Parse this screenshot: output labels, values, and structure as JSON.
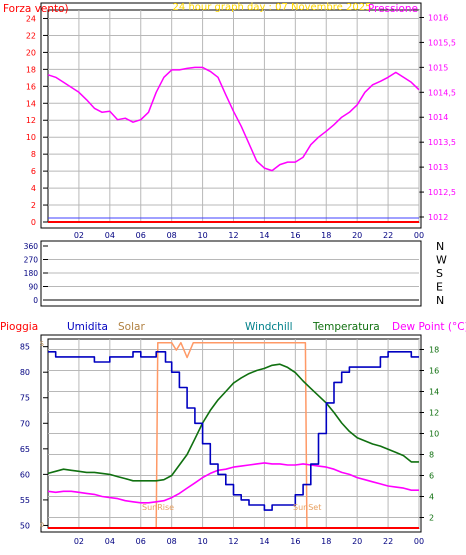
{
  "header_top": {
    "left_label": "Forza vento)",
    "title": "24 hour graph day : 07 Novembre 2025",
    "right_label": "Pressione"
  },
  "header_bottom": {
    "labels": [
      "Pioggia",
      "Umidita",
      "Solar",
      "Windchill",
      "Temperatura",
      "Dew Point (°C)"
    ]
  },
  "colors": {
    "background": "#ffffff",
    "frame": "#000000",
    "grid": "#b8b8b8",
    "red": "#ff0000",
    "blue_line": "#4040ff",
    "magenta": "#ff00ff",
    "title_yellow": "#ffd700",
    "solar_orange": "#ff9966",
    "humidity_blue": "#0000c0",
    "solar_label": "#b08040",
    "windchill_label": "#00808a",
    "temp_green": "#107010",
    "label_dark_blue": "#000080",
    "sun_label": "#e8a060"
  },
  "x_ticks": [
    "02",
    "04",
    "06",
    "08",
    "10",
    "12",
    "14",
    "16",
    "18",
    "20",
    "22",
    "00"
  ],
  "chart_data": [
    {
      "type": "line",
      "panel": "wind-pressure",
      "xlabel": "",
      "x_range_hours": [
        0,
        24
      ],
      "y_left_label": "Forza vento)",
      "y_left_ticks": [
        0,
        2,
        4,
        6,
        8,
        10,
        12,
        14,
        16,
        18,
        20,
        22,
        24
      ],
      "y_left_range": [
        0,
        25
      ],
      "y_right_label": "Pressione",
      "y_right_ticks": [
        "1012",
        "1012,5",
        "1013",
        "1013,5",
        "1014",
        "1014,5",
        "1015",
        "1015,5",
        "1016"
      ],
      "y_right_range": [
        1011.9,
        1016.15
      ],
      "series": [
        {
          "name": "Pressione",
          "axis": "right",
          "color": "#ff00ff",
          "x": [
            0.0,
            0.5,
            1.0,
            1.5,
            2.0,
            2.5,
            3.0,
            3.5,
            4.0,
            4.5,
            5.0,
            5.5,
            6.0,
            6.5,
            7.0,
            7.5,
            8.0,
            8.5,
            9.0,
            9.5,
            10.0,
            10.5,
            11.0,
            11.5,
            12.0,
            12.5,
            13.0,
            13.5,
            14.0,
            14.5,
            15.0,
            15.5,
            16.0,
            16.5,
            17.0,
            17.5,
            18.0,
            18.5,
            19.0,
            19.5,
            20.0,
            20.5,
            21.0,
            21.5,
            22.0,
            22.5,
            23.0,
            23.5,
            24.0
          ],
          "y": [
            1014.85,
            1014.8,
            1014.7,
            1014.6,
            1014.5,
            1014.35,
            1014.18,
            1014.1,
            1014.12,
            1013.95,
            1013.98,
            1013.9,
            1013.95,
            1014.1,
            1014.5,
            1014.8,
            1014.95,
            1014.95,
            1014.98,
            1015.0,
            1015.0,
            1014.92,
            1014.8,
            1014.45,
            1014.12,
            1013.82,
            1013.47,
            1013.12,
            1012.98,
            1012.93,
            1013.05,
            1013.1,
            1013.1,
            1013.2,
            1013.45,
            1013.6,
            1013.72,
            1013.85,
            1014.0,
            1014.1,
            1014.25,
            1014.5,
            1014.65,
            1014.72,
            1014.8,
            1014.9,
            1014.8,
            1014.7,
            1014.55
          ]
        },
        {
          "name": "Forza vento",
          "axis": "left",
          "color": "#ff0000",
          "x": [
            0,
            24
          ],
          "y": [
            0,
            0
          ]
        }
      ]
    },
    {
      "type": "line",
      "panel": "wind-direction",
      "y_left_ticks": [
        0,
        90,
        180,
        270,
        360
      ],
      "y_left_range": [
        0,
        360
      ],
      "y_right_ticks": [
        "N",
        "W",
        "S",
        "E",
        "N"
      ],
      "series": []
    },
    {
      "type": "line",
      "panel": "weather",
      "x_range_hours": [
        0,
        24
      ],
      "y_left_ticks": [
        50,
        55,
        60,
        65,
        70,
        75,
        80,
        85
      ],
      "y_left_range": [
        49.5,
        86.5
      ],
      "y_right_ticks": [
        2,
        4,
        6,
        8,
        10,
        12,
        14,
        16,
        18
      ],
      "y_right_range": [
        1.0,
        19.0
      ],
      "solar_axis_ticks": [
        0,
        5
      ],
      "annotations": [
        "SunRise",
        "SunSet"
      ],
      "series": [
        {
          "name": "Umidita",
          "axis": "left",
          "color": "#0000c0",
          "x": [
            0.0,
            0.5,
            1.0,
            1.5,
            2.0,
            2.5,
            3.0,
            3.5,
            4.0,
            4.5,
            5.0,
            5.5,
            6.0,
            6.5,
            7.0,
            7.3,
            7.6,
            8.0,
            8.5,
            9.0,
            9.5,
            10.0,
            10.5,
            11.0,
            11.5,
            12.0,
            12.5,
            13.0,
            13.5,
            14.0,
            14.5,
            15.0,
            15.5,
            16.0,
            16.5,
            17.0,
            17.5,
            18.0,
            18.5,
            19.0,
            19.5,
            20.0,
            20.5,
            21.0,
            21.5,
            22.0,
            22.5,
            23.0,
            23.5,
            24.0
          ],
          "y": [
            84,
            83,
            83,
            83,
            83,
            83,
            82,
            82,
            83,
            83,
            83,
            84,
            83,
            83,
            84,
            84,
            82,
            80,
            77,
            73,
            70,
            66,
            62,
            60,
            58,
            56,
            55,
            54,
            54,
            53,
            54,
            54,
            54,
            56,
            58,
            62,
            68,
            74,
            78,
            80,
            81,
            81,
            81,
            81,
            83,
            84,
            84,
            84,
            83,
            83
          ]
        },
        {
          "name": "Temperatura",
          "axis": "right",
          "color": "#107010",
          "x": [
            0.0,
            0.5,
            1.0,
            1.5,
            2.0,
            2.5,
            3.0,
            3.5,
            4.0,
            4.5,
            5.0,
            5.5,
            6.0,
            6.5,
            7.0,
            7.5,
            8.0,
            8.5,
            9.0,
            9.5,
            10.0,
            10.5,
            11.0,
            11.5,
            12.0,
            12.5,
            13.0,
            13.5,
            14.0,
            14.5,
            15.0,
            15.5,
            16.0,
            16.5,
            17.0,
            17.5,
            18.0,
            18.5,
            19.0,
            19.5,
            20.0,
            20.5,
            21.0,
            21.5,
            22.0,
            22.5,
            23.0,
            23.5,
            24.0
          ],
          "y": [
            6.2,
            6.4,
            6.6,
            6.5,
            6.4,
            6.3,
            6.3,
            6.2,
            6.1,
            5.9,
            5.7,
            5.5,
            5.5,
            5.5,
            5.5,
            5.6,
            6.0,
            7.0,
            8.0,
            9.5,
            11.0,
            12.2,
            13.2,
            14.0,
            14.8,
            15.3,
            15.7,
            16.0,
            16.2,
            16.5,
            16.6,
            16.3,
            15.8,
            15.0,
            14.3,
            13.6,
            12.9,
            12.0,
            11.0,
            10.2,
            9.6,
            9.3,
            9.0,
            8.8,
            8.5,
            8.2,
            7.9,
            7.3,
            7.3
          ]
        },
        {
          "name": "Dew Point",
          "axis": "right",
          "color": "#ff00ff",
          "x": [
            0.0,
            0.5,
            1.0,
            1.5,
            2.0,
            2.5,
            3.0,
            3.5,
            4.0,
            4.5,
            5.0,
            5.5,
            6.0,
            6.5,
            7.0,
            7.5,
            8.0,
            8.5,
            9.0,
            9.5,
            10.0,
            10.5,
            11.0,
            11.5,
            12.0,
            12.5,
            13.0,
            13.5,
            14.0,
            14.5,
            15.0,
            15.5,
            16.0,
            16.5,
            17.0,
            17.5,
            18.0,
            18.5,
            19.0,
            19.5,
            20.0,
            20.5,
            21.0,
            21.5,
            22.0,
            22.5,
            23.0,
            23.5,
            24.0
          ],
          "y": [
            4.5,
            4.4,
            4.5,
            4.5,
            4.4,
            4.3,
            4.2,
            4.0,
            3.9,
            3.8,
            3.6,
            3.5,
            3.4,
            3.4,
            3.5,
            3.6,
            3.9,
            4.3,
            4.8,
            5.3,
            5.8,
            6.2,
            6.5,
            6.6,
            6.8,
            6.9,
            7.0,
            7.1,
            7.2,
            7.1,
            7.1,
            7.0,
            7.0,
            7.1,
            7.0,
            6.9,
            6.8,
            6.6,
            6.3,
            6.1,
            5.8,
            5.6,
            5.4,
            5.2,
            5.0,
            4.9,
            4.8,
            4.6,
            4.6
          ]
        },
        {
          "name": "Solar",
          "axis": "solar",
          "color": "#ff9966",
          "x": [
            0,
            7.0,
            7.1,
            7.5,
            8.0,
            8.3,
            8.6,
            9.0,
            9.4,
            9.8,
            10.5,
            12.0,
            14.0,
            15.5,
            16.5,
            16.65,
            16.75,
            24
          ],
          "y": [
            0,
            0,
            5.0,
            5.0,
            5.0,
            4.8,
            5.0,
            4.6,
            5.0,
            5.0,
            5.0,
            5.0,
            5.0,
            5.0,
            5.0,
            5.0,
            0,
            0
          ]
        },
        {
          "name": "Pioggia",
          "axis": "left",
          "color": "#ff0000",
          "x": [
            0,
            24
          ],
          "y": [
            49.5,
            49.5
          ]
        }
      ]
    }
  ]
}
